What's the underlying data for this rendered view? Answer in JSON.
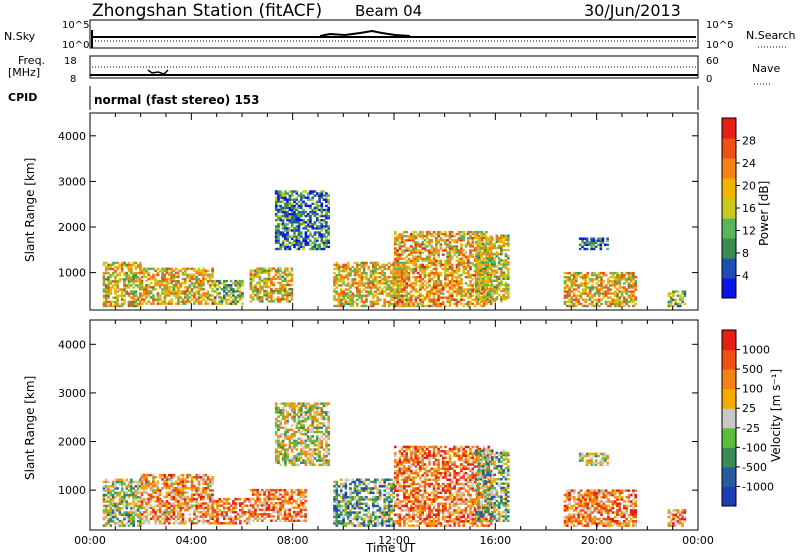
{
  "header": {
    "station": "Zhongshan Station (fitACF)",
    "beam": "Beam 04",
    "date": "30/Jun/2013"
  },
  "top_panel": {
    "left_label": "N.Sky",
    "right_label": "N.Search",
    "y_ticks_left": [
      "10^5",
      "10^0"
    ],
    "y_ticks_right": [
      "10^5",
      "10^0"
    ]
  },
  "freq_panel": {
    "left_label_1": "Freq.",
    "left_label_2": "[MHz]",
    "right_label": "Nave",
    "y_ticks_left": [
      "18",
      "8"
    ],
    "y_ticks_right": [
      "60",
      "0"
    ],
    "cpid_label": "CPID",
    "cpid_text": "normal (fast stereo) 153"
  },
  "chart_data": [
    {
      "type": "heatmap",
      "name": "power",
      "ylabel": "Slant Range [km]",
      "yticks": [
        "4000",
        "3000",
        "2000",
        "1000"
      ],
      "ylim": [
        180,
        4500
      ],
      "xlim": [
        0,
        24
      ],
      "colorbar_label": "Power [dB]",
      "colorbar_ticks": [
        "28",
        "24",
        "20",
        "16",
        "12",
        "8",
        "4"
      ],
      "colors": [
        "#0a14e6",
        "#1e50b4",
        "#3c8c50",
        "#5ab45a",
        "#c8c81e",
        "#f0b400",
        "#f58214",
        "#f05014",
        "#e61e14"
      ],
      "echo_regions": [
        {
          "t0": 0.5,
          "t1": 2.0,
          "r0": 250,
          "r1": 1200,
          "level": 0.55
        },
        {
          "t0": 2.0,
          "t1": 4.8,
          "r0": 300,
          "r1": 1100,
          "level": 0.6
        },
        {
          "t0": 4.8,
          "t1": 6.0,
          "r0": 300,
          "r1": 800,
          "level": 0.4
        },
        {
          "t0": 6.3,
          "t1": 8.0,
          "r0": 350,
          "r1": 1100,
          "level": 0.55
        },
        {
          "t0": 7.3,
          "t1": 9.4,
          "r0": 1500,
          "r1": 2800,
          "level": 0.25
        },
        {
          "t0": 9.6,
          "t1": 12.3,
          "r0": 250,
          "r1": 1200,
          "level": 0.6
        },
        {
          "t0": 12.0,
          "t1": 15.8,
          "r0": 250,
          "r1": 1900,
          "level": 0.65
        },
        {
          "t0": 15.2,
          "t1": 16.5,
          "r0": 350,
          "r1": 1800,
          "level": 0.5
        },
        {
          "t0": 18.7,
          "t1": 21.5,
          "r0": 250,
          "r1": 1000,
          "level": 0.6
        },
        {
          "t0": 19.3,
          "t1": 20.4,
          "r0": 1500,
          "r1": 1750,
          "level": 0.2
        },
        {
          "t0": 22.8,
          "t1": 23.5,
          "r0": 250,
          "r1": 600,
          "level": 0.45
        }
      ]
    },
    {
      "type": "heatmap",
      "name": "velocity",
      "ylabel": "Slant Range [km]",
      "yticks": [
        "4000",
        "3000",
        "2000",
        "1000"
      ],
      "ylim": [
        180,
        4500
      ],
      "xlim": [
        0,
        24
      ],
      "xlabel": "Time UT",
      "xticks": [
        "00:00",
        "04:00",
        "08:00",
        "12:00",
        "16:00",
        "20:00",
        "00:00"
      ],
      "colorbar_label": "Velocity [m s⁻¹]",
      "colorbar_ticks": [
        "1000",
        "500",
        "100",
        "25",
        "-25",
        "-100",
        "-500",
        "-1000"
      ],
      "colors": [
        "#1e3cb4",
        "#285aa0",
        "#3c8c5a",
        "#5abe3c",
        "#c8c8c8",
        "#f5aa00",
        "#f58214",
        "#f05014",
        "#e61e14"
      ],
      "echo_regions": [
        {
          "t0": 0.5,
          "t1": 2.0,
          "r0": 250,
          "r1": 1200,
          "level": 0.45
        },
        {
          "t0": 2.0,
          "t1": 4.8,
          "r0": 300,
          "r1": 1300,
          "level": 0.7
        },
        {
          "t0": 4.8,
          "t1": 6.3,
          "r0": 300,
          "r1": 800,
          "level": 0.75
        },
        {
          "t0": 6.3,
          "t1": 8.5,
          "r0": 350,
          "r1": 1000,
          "level": 0.72
        },
        {
          "t0": 7.3,
          "t1": 9.4,
          "r0": 1500,
          "r1": 2800,
          "level": 0.5
        },
        {
          "t0": 9.6,
          "t1": 12.0,
          "r0": 250,
          "r1": 1200,
          "level": 0.35
        },
        {
          "t0": 12.0,
          "t1": 15.8,
          "r0": 250,
          "r1": 1900,
          "level": 0.75
        },
        {
          "t0": 15.2,
          "t1": 16.5,
          "r0": 350,
          "r1": 1800,
          "level": 0.4
        },
        {
          "t0": 18.7,
          "t1": 21.5,
          "r0": 250,
          "r1": 1000,
          "level": 0.72
        },
        {
          "t0": 19.3,
          "t1": 20.4,
          "r0": 1500,
          "r1": 1750,
          "level": 0.5
        },
        {
          "t0": 22.8,
          "t1": 23.5,
          "r0": 250,
          "r1": 600,
          "level": 0.7
        }
      ]
    }
  ]
}
